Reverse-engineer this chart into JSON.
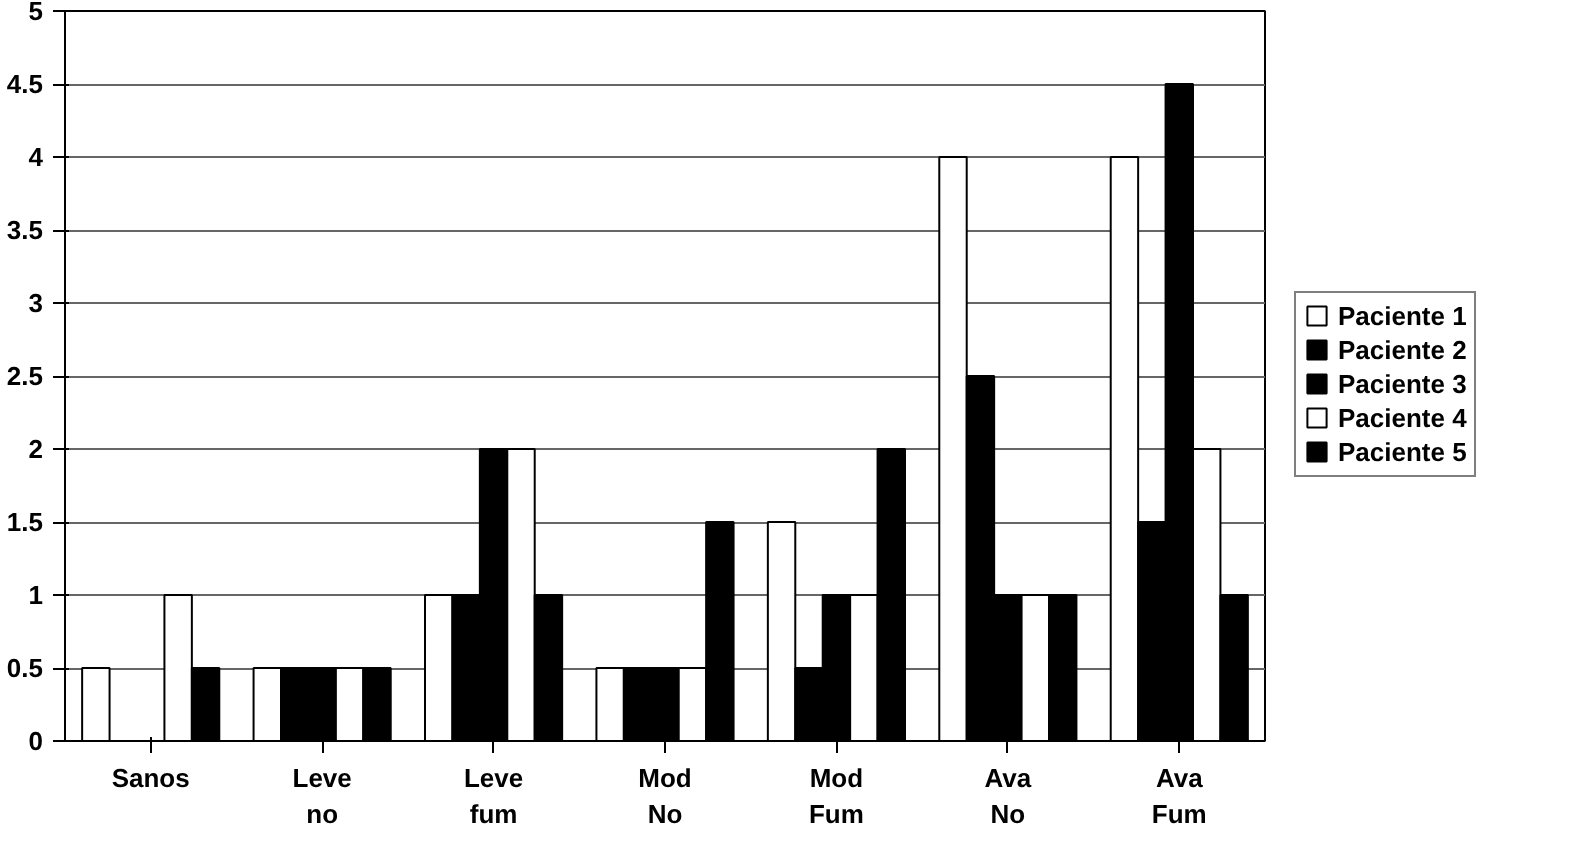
{
  "chart_data": {
    "type": "bar",
    "categories": [
      "Sanos",
      "Leve\nno",
      "Leve\nfum",
      "Mod\nNo",
      "Mod\nFum",
      "Ava\nNo",
      "Ava\nFum"
    ],
    "series": [
      {
        "name": "Paciente 1",
        "color": "#ffffff",
        "values": [
          0.5,
          0.5,
          1,
          0.5,
          1.5,
          4,
          4
        ]
      },
      {
        "name": "Paciente 2",
        "color": "#000000",
        "values": [
          0,
          0.5,
          1,
          0.5,
          0.5,
          2.5,
          1.5
        ]
      },
      {
        "name": "Paciente 3",
        "color": "#000000",
        "values": [
          0,
          0.5,
          2,
          0.5,
          1,
          1,
          4.5
        ]
      },
      {
        "name": "Paciente 4",
        "color": "#ffffff",
        "values": [
          1,
          0.5,
          2,
          0.5,
          1,
          1,
          2
        ]
      },
      {
        "name": "Paciente 5",
        "color": "#000000",
        "values": [
          0.5,
          0.5,
          1,
          1.5,
          2,
          1,
          1
        ]
      }
    ],
    "ylim": [
      0,
      5
    ],
    "yticks": [
      0,
      0.5,
      1,
      1.5,
      2,
      2.5,
      3,
      3.5,
      4,
      4.5,
      5
    ],
    "grid": "y",
    "legend": "right"
  }
}
